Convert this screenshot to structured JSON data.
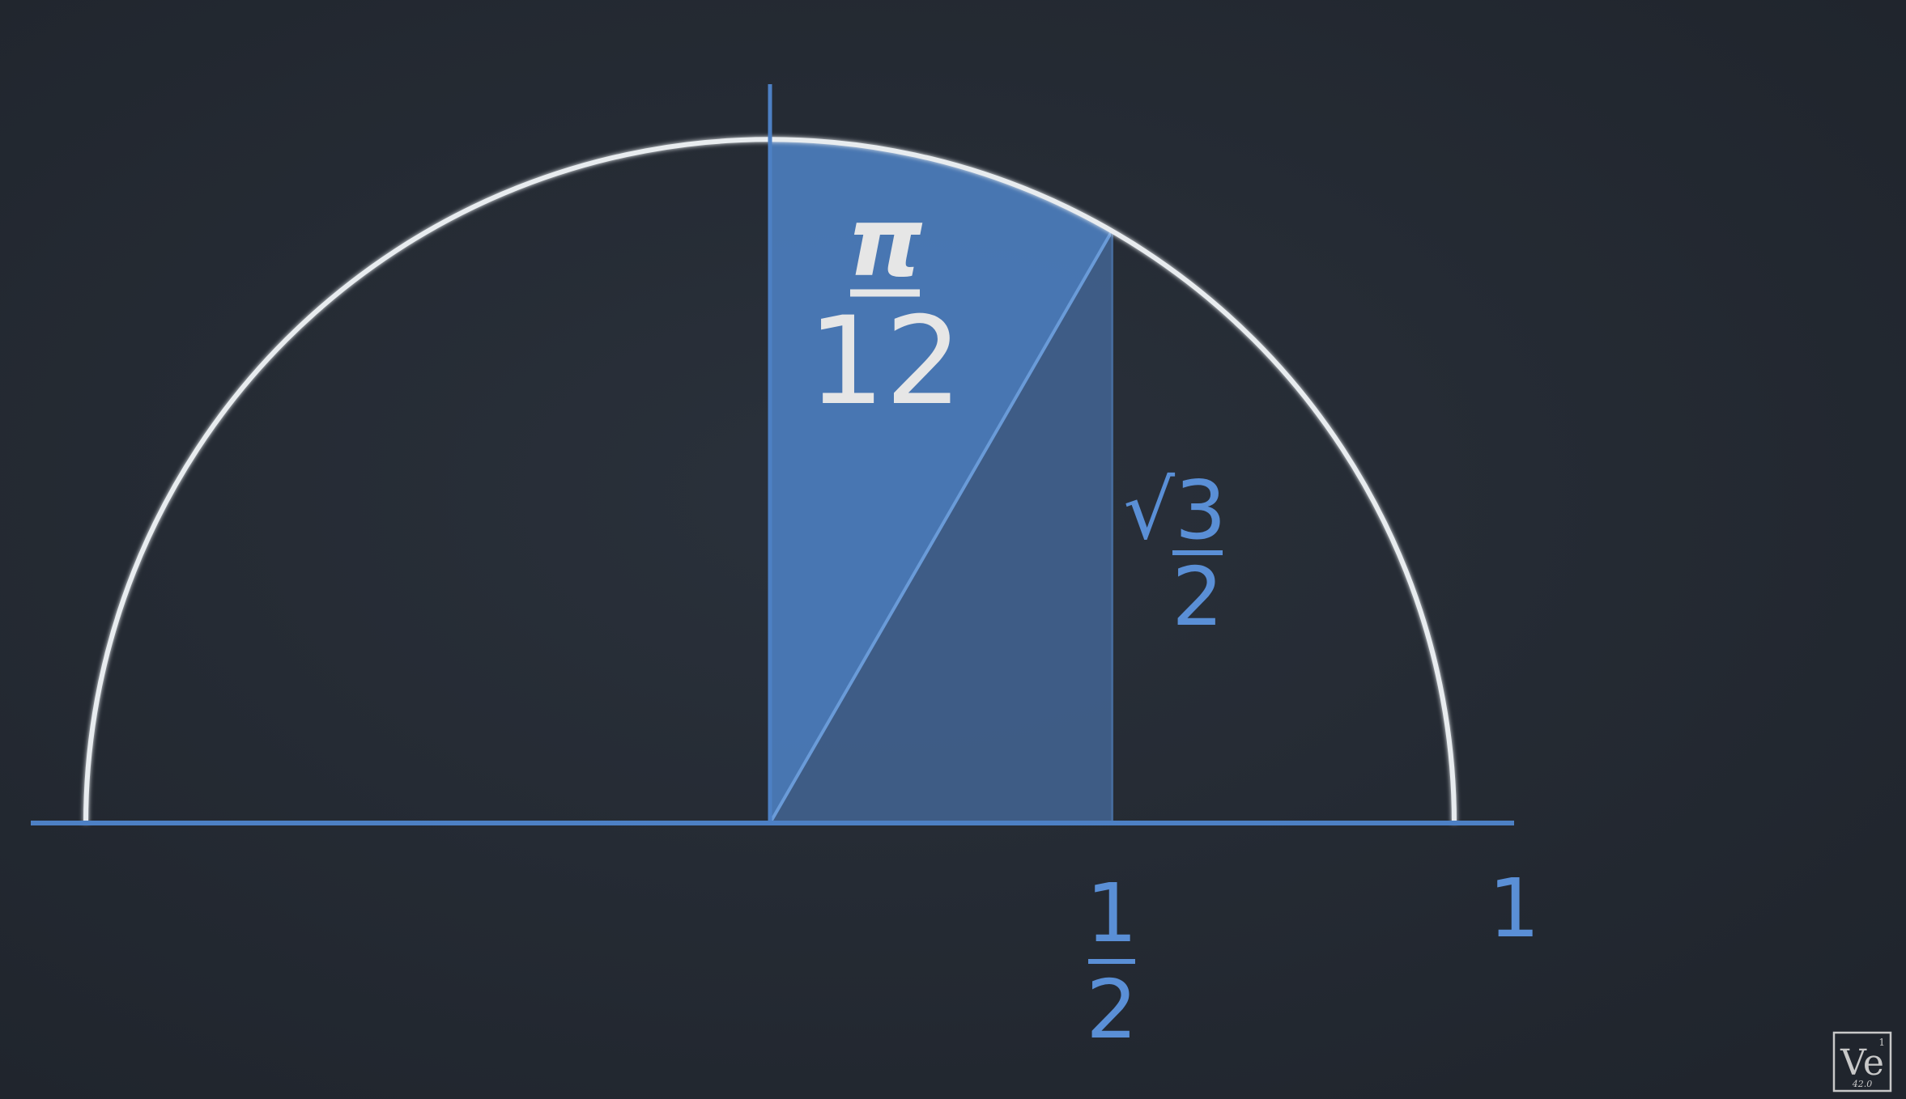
{
  "colors": {
    "background": "#262c35",
    "circle": "#e8ecef",
    "axis": "#4d80c4",
    "sector_fill": "#4a7ab8",
    "triangle_fill": "#3f5f8a",
    "label_white": "#e6e6e6",
    "label_blue": "#5a8fd6",
    "logo": "#c8c8c8"
  },
  "labels": {
    "sector_angle": {
      "numerator": "π",
      "denominator": "12"
    },
    "height": {
      "numerator": "√3",
      "denominator": "2"
    },
    "half": {
      "numerator": "1",
      "denominator": "2"
    },
    "one": "1"
  },
  "logo": {
    "text": "Ve",
    "atomic_number": "1",
    "mass": "42.0"
  }
}
